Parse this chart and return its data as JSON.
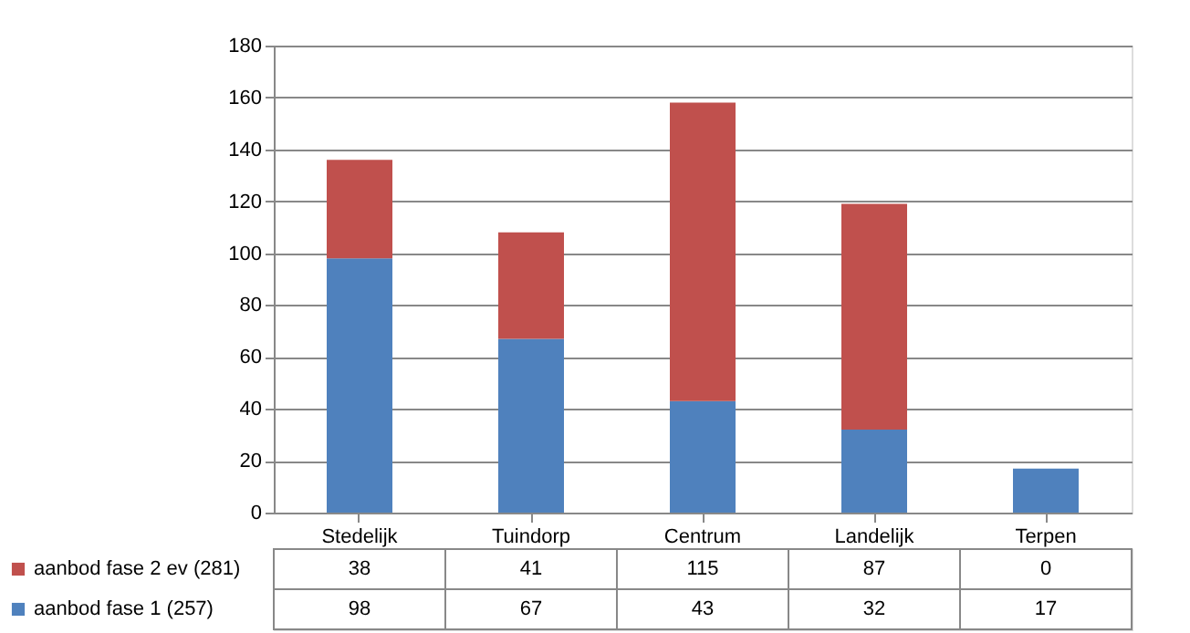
{
  "chart_data": {
    "type": "bar",
    "stacked": true,
    "categories": [
      "Stedelijk",
      "Tuindorp",
      "Centrum",
      "Landelijk",
      "Terpen"
    ],
    "series": [
      {
        "name": "aanbod fase 1 (257)",
        "color": "#4f81bd",
        "values": [
          98,
          67,
          43,
          32,
          17
        ]
      },
      {
        "name": "aanbod fase 2 ev (281)",
        "color": "#c0504d",
        "values": [
          38,
          41,
          115,
          87,
          0
        ]
      }
    ],
    "ylim": [
      0,
      180
    ],
    "yticks": [
      0,
      20,
      40,
      60,
      80,
      100,
      120,
      140,
      160,
      180
    ],
    "grid": "y",
    "legend": "bottom",
    "data_labels": true
  }
}
